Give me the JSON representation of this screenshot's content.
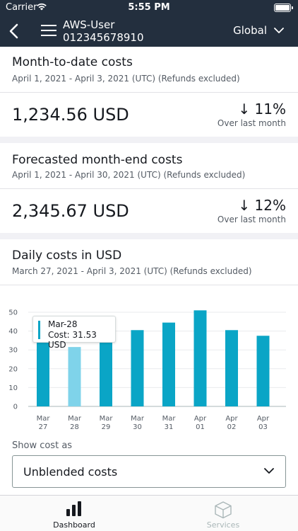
{
  "status_bar": {
    "carrier": "Carrier",
    "time": "5:55 PM"
  },
  "header": {
    "user_name": "AWS-User",
    "account_id": "012345678910",
    "region": "Global"
  },
  "month_to_date": {
    "title": "Month-to-date costs",
    "range": "April 1, 2021 - April 3, 2021 (UTC) (Refunds excluded)",
    "amount": "1,234.56 USD",
    "change": "↓ 11%",
    "change_label": "Over last month"
  },
  "forecast": {
    "title": "Forecasted month-end costs",
    "range": "April 1, 2021 - April 30, 2021 (UTC) (Refunds excluded)",
    "amount": "2,345.67 USD",
    "change": "↓ 12%",
    "change_label": "Over last month"
  },
  "daily": {
    "title": "Daily costs in USD",
    "range": "March 27, 2021 - April 3, 2021 (UTC) (Refunds excluded)"
  },
  "tooltip": {
    "date": "Mar-28",
    "cost": "Cost: 31.53 USD"
  },
  "chart_data": {
    "type": "bar",
    "categories": [
      "Mar 27",
      "Mar 28",
      "Mar 29",
      "Mar 30",
      "Mar 31",
      "Apr 01",
      "Apr 02",
      "Apr 03"
    ],
    "category_lines": [
      [
        "Mar",
        "27"
      ],
      [
        "Mar",
        "28"
      ],
      [
        "Mar",
        "29"
      ],
      [
        "Mar",
        "30"
      ],
      [
        "Mar",
        "31"
      ],
      [
        "Apr",
        "01"
      ],
      [
        "Apr",
        "02"
      ],
      [
        "Apr",
        "03"
      ]
    ],
    "values": [
      36,
      31.53,
      38,
      40.5,
      44.5,
      51,
      40.5,
      37.5
    ],
    "highlighted_index": 1,
    "ylim": [
      0,
      50
    ],
    "yticks": [
      0,
      10,
      20,
      30,
      40,
      50
    ],
    "grid": true,
    "bar_color": "#0aa5c6",
    "highlight_color": "#7fd3ea"
  },
  "show_cost": {
    "label": "Show cost as",
    "value": "Unblended costs"
  },
  "tabbar": {
    "dashboard": "Dashboard",
    "services": "Services"
  },
  "colors": {
    "header_bg": "#232f3e",
    "accent": "#0aa5c6"
  }
}
